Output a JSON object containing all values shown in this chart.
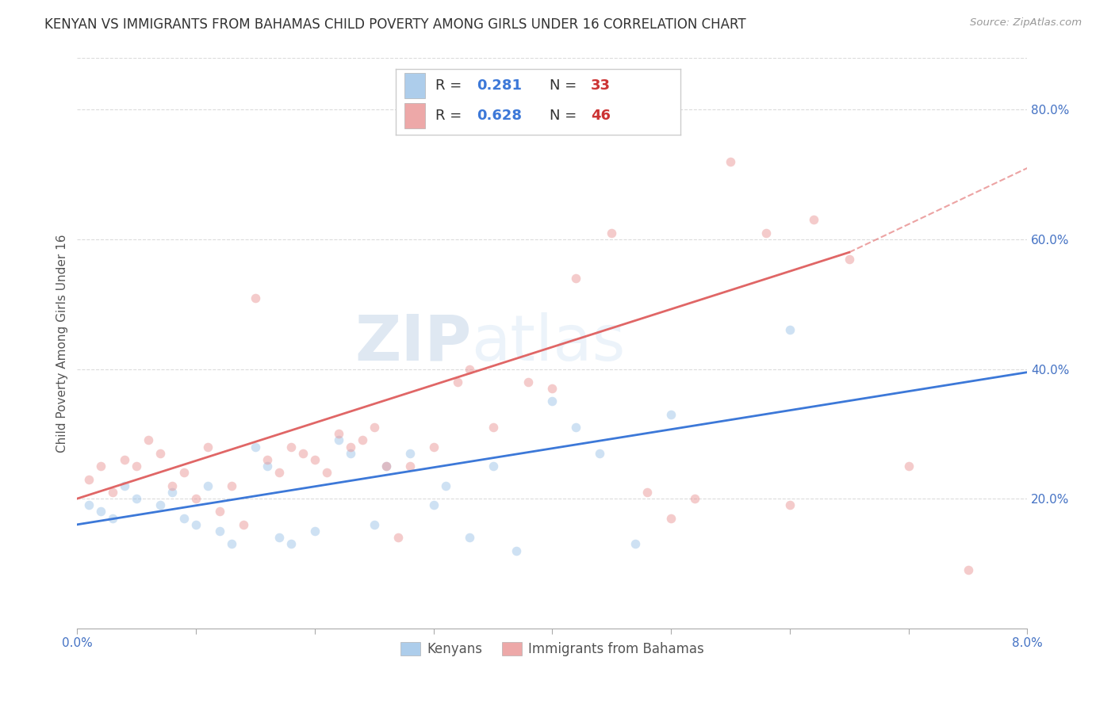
{
  "title": "KENYAN VS IMMIGRANTS FROM BAHAMAS CHILD POVERTY AMONG GIRLS UNDER 16 CORRELATION CHART",
  "source": "Source: ZipAtlas.com",
  "ylabel": "Child Poverty Among Girls Under 16",
  "watermark_zip": "ZIP",
  "watermark_atlas": "atlas",
  "xlim": [
    0.0,
    0.08
  ],
  "ylim": [
    0.0,
    0.88
  ],
  "xticks": [
    0.0,
    0.01,
    0.02,
    0.03,
    0.04,
    0.05,
    0.06,
    0.07,
    0.08
  ],
  "yticks_right": [
    0.2,
    0.4,
    0.6,
    0.8
  ],
  "ytick_labels_right": [
    "20.0%",
    "40.0%",
    "60.0%",
    "80.0%"
  ],
  "legend_blue_r": "0.281",
  "legend_blue_n": "33",
  "legend_pink_r": "0.628",
  "legend_pink_n": "46",
  "legend_label_blue": "Kenyans",
  "legend_label_pink": "Immigrants from Bahamas",
  "blue_color": "#9fc5e8",
  "pink_color": "#ea9999",
  "blue_line_color": "#3c78d8",
  "pink_line_color": "#e06666",
  "dashed_line_color": "#e06666",
  "title_fontsize": 12,
  "axis_label_fontsize": 11,
  "tick_fontsize": 11,
  "blue_scatter_x": [
    0.001,
    0.002,
    0.003,
    0.004,
    0.005,
    0.007,
    0.008,
    0.009,
    0.01,
    0.011,
    0.012,
    0.013,
    0.015,
    0.016,
    0.017,
    0.018,
    0.02,
    0.022,
    0.023,
    0.025,
    0.026,
    0.028,
    0.03,
    0.031,
    0.033,
    0.035,
    0.037,
    0.04,
    0.042,
    0.044,
    0.047,
    0.05,
    0.06
  ],
  "blue_scatter_y": [
    0.19,
    0.18,
    0.17,
    0.22,
    0.2,
    0.19,
    0.21,
    0.17,
    0.16,
    0.22,
    0.15,
    0.13,
    0.28,
    0.25,
    0.14,
    0.13,
    0.15,
    0.29,
    0.27,
    0.16,
    0.25,
    0.27,
    0.19,
    0.22,
    0.14,
    0.25,
    0.12,
    0.35,
    0.31,
    0.27,
    0.13,
    0.33,
    0.46
  ],
  "pink_scatter_x": [
    0.001,
    0.002,
    0.003,
    0.004,
    0.005,
    0.006,
    0.007,
    0.008,
    0.009,
    0.01,
    0.011,
    0.012,
    0.013,
    0.014,
    0.015,
    0.016,
    0.017,
    0.018,
    0.019,
    0.02,
    0.021,
    0.022,
    0.023,
    0.024,
    0.025,
    0.026,
    0.027,
    0.028,
    0.03,
    0.032,
    0.033,
    0.035,
    0.038,
    0.04,
    0.042,
    0.045,
    0.048,
    0.05,
    0.052,
    0.055,
    0.058,
    0.06,
    0.062,
    0.065,
    0.07,
    0.075
  ],
  "pink_scatter_y": [
    0.23,
    0.25,
    0.21,
    0.26,
    0.25,
    0.29,
    0.27,
    0.22,
    0.24,
    0.2,
    0.28,
    0.18,
    0.22,
    0.16,
    0.51,
    0.26,
    0.24,
    0.28,
    0.27,
    0.26,
    0.24,
    0.3,
    0.28,
    0.29,
    0.31,
    0.25,
    0.14,
    0.25,
    0.28,
    0.38,
    0.4,
    0.31,
    0.38,
    0.37,
    0.54,
    0.61,
    0.21,
    0.17,
    0.2,
    0.72,
    0.61,
    0.19,
    0.63,
    0.57,
    0.25,
    0.09
  ],
  "blue_line_x": [
    0.0,
    0.08
  ],
  "blue_line_y": [
    0.16,
    0.395
  ],
  "pink_line_x": [
    0.0,
    0.065
  ],
  "pink_line_y": [
    0.2,
    0.58
  ],
  "dashed_line_x": [
    0.065,
    0.08
  ],
  "dashed_line_y": [
    0.58,
    0.71
  ],
  "grid_color": "#cccccc",
  "scatter_size": 70,
  "scatter_alpha": 0.5,
  "background_color": "#ffffff"
}
